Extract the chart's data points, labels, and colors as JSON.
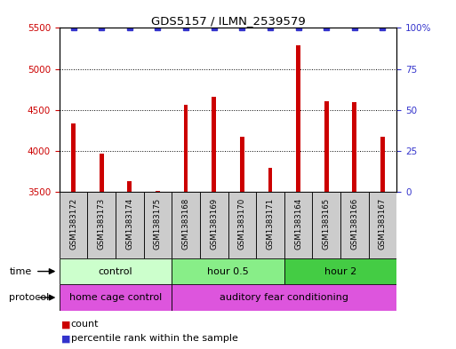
{
  "title": "GDS5157 / ILMN_2539579",
  "samples": [
    "GSM1383172",
    "GSM1383173",
    "GSM1383174",
    "GSM1383175",
    "GSM1383168",
    "GSM1383169",
    "GSM1383170",
    "GSM1383171",
    "GSM1383164",
    "GSM1383165",
    "GSM1383166",
    "GSM1383167"
  ],
  "counts": [
    4330,
    3970,
    3630,
    3510,
    4560,
    4660,
    4175,
    3790,
    5290,
    4610,
    4590,
    4170
  ],
  "percentile_ranks": [
    100,
    100,
    100,
    100,
    100,
    100,
    100,
    100,
    100,
    100,
    100,
    100
  ],
  "ylim_left": [
    3500,
    5500
  ],
  "ylim_right": [
    0,
    100
  ],
  "yticks_left": [
    3500,
    4000,
    4500,
    5000,
    5500
  ],
  "yticks_right": [
    0,
    25,
    50,
    75,
    100
  ],
  "bar_color": "#cc0000",
  "dot_color": "#3333cc",
  "groups": [
    {
      "label": "control",
      "start": 0,
      "end": 4,
      "color": "#ccffcc"
    },
    {
      "label": "hour 0.5",
      "start": 4,
      "end": 8,
      "color": "#88ee88"
    },
    {
      "label": "hour 2",
      "start": 8,
      "end": 12,
      "color": "#44cc44"
    }
  ],
  "protocols": [
    {
      "label": "home cage control",
      "start": 0,
      "end": 4,
      "color": "#dd55dd"
    },
    {
      "label": "auditory fear conditioning",
      "start": 4,
      "end": 12,
      "color": "#dd55dd"
    }
  ],
  "time_label": "time",
  "protocol_label": "protocol",
  "legend_count_label": "count",
  "legend_percentile_label": "percentile rank within the sample",
  "background_color": "#ffffff",
  "tick_label_color_left": "#cc0000",
  "tick_label_color_right": "#3333cc",
  "sample_box_color": "#cccccc",
  "bar_width": 0.15
}
